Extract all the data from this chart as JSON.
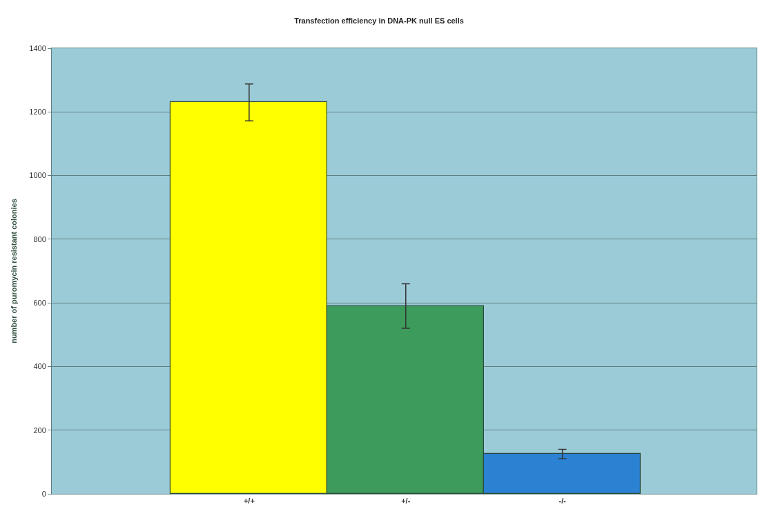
{
  "chart_data": {
    "type": "bar",
    "title": "Transfection efficiency in DNA-PK null ES cells",
    "ylabel": "number of puromycin resistant colonies",
    "categories": [
      "+/+",
      "+/-",
      "-/-"
    ],
    "values": [
      1230,
      590,
      125
    ],
    "errors": [
      58,
      70,
      15
    ],
    "colors": [
      "#ffff00",
      "#3d9b5c",
      "#2c82d2"
    ],
    "ylim": [
      0,
      1400
    ],
    "yticks": [
      0,
      200,
      400,
      600,
      800,
      1000,
      1200,
      1400
    ],
    "grid": "y"
  }
}
